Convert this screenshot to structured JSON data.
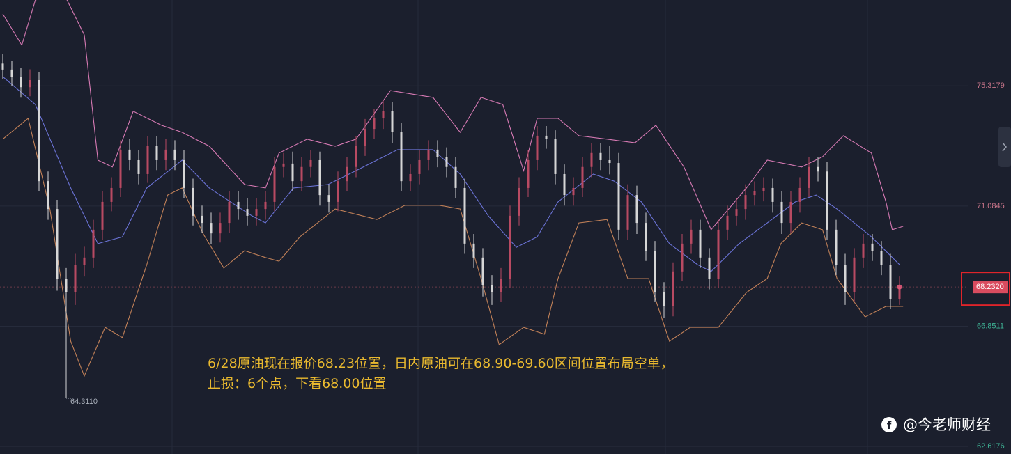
{
  "chart_data": {
    "type": "candlestick",
    "ylim": [
      62.35,
      78.34
    ],
    "yticks": [
      75.3179,
      71.0845,
      66.8511,
      62.6176
    ],
    "grid": true,
    "up_color": "#b84a62",
    "down_color": "#d6d6d6",
    "open": [
      76.1,
      75.89,
      75.64,
      75.27,
      75.52,
      71.96,
      70.98,
      68.53,
      68.04,
      69.02,
      69.27,
      70.25,
      71.23,
      71.72,
      73.07,
      72.7,
      72.21,
      73.19,
      72.7,
      73.07,
      72.7,
      71.72,
      70.74,
      70.49,
      70.12,
      70.49,
      71.23,
      70.98,
      70.74,
      70.98,
      71.23,
      72.46,
      72.58,
      71.96,
      72.46,
      72.7,
      71.47,
      71.23,
      71.96,
      72.46,
      73.19,
      73.8,
      74.17,
      74.42,
      73.68,
      71.96,
      72.21,
      72.7,
      73.07,
      72.82,
      72.46,
      71.72,
      69.76,
      69.27,
      68.29,
      68.04,
      68.53,
      70.74,
      71.72,
      72.7,
      73.56,
      73.44,
      72.21,
      71.47,
      71.72,
      72.46,
      72.95,
      72.7,
      72.6,
      70.25,
      71.47,
      70.49,
      69.51,
      68.04,
      67.55,
      68.78,
      69.76,
      70.25,
      69.27,
      68.53,
      70.25,
      70.74,
      70.98,
      71.47,
      71.6,
      71.72,
      71.23,
      70.49,
      71.23,
      71.72,
      72.46,
      72.3,
      70.25,
      69.02,
      68.04,
      69.27,
      69.76,
      69.51,
      69.02,
      67.8
    ],
    "high": [
      76.45,
      76.2,
      75.95,
      75.9,
      75.8,
      72.3,
      71.3,
      68.9,
      69.4,
      69.65,
      70.6,
      71.6,
      72.1,
      73.4,
      73.45,
      73.05,
      73.55,
      73.55,
      73.45,
      73.4,
      73.05,
      72.05,
      71.1,
      70.85,
      70.85,
      71.6,
      71.6,
      71.35,
      71.35,
      71.6,
      72.8,
      72.95,
      73.0,
      72.8,
      73.05,
      73.0,
      71.85,
      72.3,
      72.8,
      73.55,
      74.15,
      74.5,
      74.8,
      74.75,
      74.0,
      72.55,
      73.05,
      73.4,
      73.4,
      73.15,
      72.8,
      72.05,
      70.1,
      69.6,
      68.65,
      68.9,
      71.1,
      72.1,
      73.05,
      73.9,
      73.9,
      73.75,
      72.55,
      72.1,
      72.8,
      73.3,
      73.3,
      73.2,
      72.95,
      71.85,
      71.8,
      70.85,
      69.85,
      68.4,
      69.1,
      70.1,
      70.6,
      70.6,
      69.6,
      70.6,
      71.1,
      71.35,
      71.85,
      71.95,
      72.1,
      72.05,
      71.6,
      71.6,
      72.1,
      72.8,
      72.8,
      72.65,
      70.6,
      69.4,
      69.6,
      70.1,
      70.1,
      69.85,
      69.4,
      68.6
    ],
    "low": [
      75.55,
      75.3,
      74.9,
      74.95,
      71.6,
      70.6,
      68.1,
      64.311,
      67.6,
      68.6,
      68.9,
      69.9,
      70.9,
      71.4,
      72.35,
      71.85,
      71.9,
      72.35,
      72.35,
      72.35,
      71.35,
      70.4,
      70.15,
      69.75,
      69.8,
      70.15,
      70.6,
      70.4,
      70.4,
      70.6,
      70.9,
      72.1,
      71.6,
      71.6,
      72.1,
      71.1,
      70.85,
      70.9,
      71.6,
      72.1,
      72.85,
      73.45,
      73.8,
      73.3,
      71.6,
      71.6,
      71.85,
      72.35,
      72.45,
      72.1,
      71.35,
      69.4,
      68.9,
      67.9,
      67.6,
      67.7,
      68.2,
      70.4,
      71.4,
      72.35,
      73.1,
      71.85,
      71.1,
      71.1,
      71.4,
      72.1,
      72.35,
      72.2,
      69.9,
      69.9,
      70.1,
      69.15,
      67.7,
      67.15,
      67.2,
      68.45,
      69.4,
      68.9,
      68.15,
      68.2,
      69.9,
      70.4,
      70.6,
      71.1,
      71.25,
      70.85,
      70.1,
      70.15,
      70.85,
      71.4,
      71.95,
      69.9,
      68.65,
      67.6,
      67.7,
      68.9,
      69.15,
      68.65,
      67.45,
      67.6
    ],
    "close": [
      75.89,
      75.64,
      75.27,
      75.52,
      71.96,
      70.98,
      68.53,
      68.04,
      69.02,
      69.27,
      70.25,
      71.23,
      71.72,
      73.07,
      72.7,
      72.21,
      73.19,
      72.7,
      73.07,
      72.7,
      71.72,
      70.74,
      70.49,
      70.12,
      70.49,
      71.23,
      70.98,
      70.74,
      70.98,
      71.23,
      72.46,
      72.58,
      71.96,
      72.46,
      72.7,
      71.47,
      71.23,
      71.96,
      72.46,
      73.19,
      73.8,
      74.17,
      74.42,
      73.68,
      71.96,
      72.21,
      72.7,
      73.07,
      72.82,
      72.46,
      71.72,
      69.76,
      69.27,
      68.29,
      68.04,
      68.53,
      70.74,
      71.72,
      72.7,
      73.56,
      73.44,
      72.21,
      71.47,
      71.72,
      72.46,
      72.95,
      72.7,
      72.6,
      70.25,
      71.47,
      70.49,
      69.51,
      68.04,
      67.55,
      68.78,
      69.76,
      70.25,
      69.27,
      68.53,
      70.25,
      70.74,
      70.98,
      71.47,
      71.6,
      71.72,
      71.23,
      70.49,
      71.23,
      71.72,
      72.46,
      72.3,
      70.25,
      69.02,
      68.04,
      69.27,
      69.76,
      69.51,
      69.02,
      67.8,
      68.23
    ],
    "bands": [
      {
        "color": "#d77ab4",
        "x": [
          0,
          2.1,
          3.6,
          6.7,
          9,
          10.5,
          12.1,
          14.4,
          17.5,
          19.8,
          22.8,
          26.7,
          29,
          30.5,
          33.6,
          36.7,
          39,
          42.8,
          47.5,
          50.5,
          52.8,
          55.2,
          57.5,
          59,
          61.3,
          63.6,
          66.7,
          69.8,
          72.1,
          75.2,
          78.2,
          82.1,
          84.4,
          88.2,
          90.5,
          92.8,
          95.9,
          97.5,
          98.2,
          99.4
        ],
        "values": [
          77.85,
          76.75,
          78.34,
          78.59,
          77.11,
          72.7,
          72.46,
          74.42,
          73.93,
          73.68,
          73.19,
          71.84,
          71.72,
          72.95,
          73.44,
          73.19,
          73.44,
          75.15,
          74.91,
          73.68,
          74.91,
          74.66,
          72.33,
          74.17,
          74.17,
          73.56,
          73.44,
          73.31,
          73.93,
          72.46,
          70.25,
          71.72,
          72.7,
          72.46,
          72.82,
          73.56,
          72.95,
          71.23,
          70.25,
          70.37
        ]
      },
      {
        "color": "#6b73d6",
        "x": [
          0,
          3.6,
          7.5,
          10.5,
          13.2,
          15.9,
          19.8,
          22.8,
          27.5,
          29,
          32.1,
          35.9,
          39.8,
          43.6,
          47.5,
          50.5,
          53.6,
          56.7,
          59,
          61.3,
          65.2,
          67.5,
          70.5,
          73.6,
          76.7,
          78.2,
          81.3,
          84.4,
          87.5,
          89.8,
          92.1,
          95.9,
          99
        ],
        "values": [
          75.64,
          74.66,
          71.72,
          69.76,
          70.0,
          71.72,
          72.7,
          71.72,
          70.74,
          70.49,
          71.72,
          71.84,
          72.46,
          73.07,
          73.07,
          72.21,
          70.74,
          69.63,
          70.0,
          71.23,
          72.21,
          71.96,
          71.23,
          69.76,
          69.02,
          68.78,
          69.76,
          70.49,
          71.23,
          71.47,
          70.98,
          70.0,
          69.02
        ]
      },
      {
        "color": "#c28158",
        "x": [
          0,
          2.8,
          5.2,
          7.5,
          9,
          11.3,
          13.2,
          15.9,
          18.2,
          19.8,
          22.1,
          24.4,
          26.7,
          29,
          30.5,
          32.8,
          36.7,
          41.3,
          44.4,
          48.2,
          50.5,
          52.8,
          54.8,
          57.5,
          59.8,
          61.3,
          63.6,
          66.7,
          69,
          71.3,
          73.6,
          75.9,
          79,
          82.1,
          84.4,
          85.9,
          88.2,
          90.5,
          92.1,
          95.2,
          97.5,
          99.4
        ],
        "values": [
          73.44,
          74.17,
          70.98,
          66.32,
          65.1,
          66.81,
          66.45,
          69.02,
          71.47,
          71.72,
          70.12,
          68.9,
          69.51,
          69.27,
          69.14,
          70.0,
          70.98,
          70.61,
          71.11,
          71.11,
          70.98,
          68.53,
          66.2,
          66.81,
          66.57,
          68.53,
          70.49,
          70.61,
          68.53,
          68.53,
          66.32,
          66.81,
          66.81,
          68.04,
          68.53,
          69.76,
          70.49,
          70.25,
          68.53,
          67.18,
          67.55,
          67.55
        ]
      }
    ],
    "min_price": {
      "value": 64.311,
      "label": "64.3110"
    },
    "last_price": {
      "value": 68.232,
      "label": "68.2320"
    },
    "annotation": [
      "6/28原油现在报价68.23位置，日内原油可在68.90-69.60区间位置布局空单，",
      "止损：6个点，下看68.00位置"
    ],
    "watermark": "@今老师财经"
  }
}
